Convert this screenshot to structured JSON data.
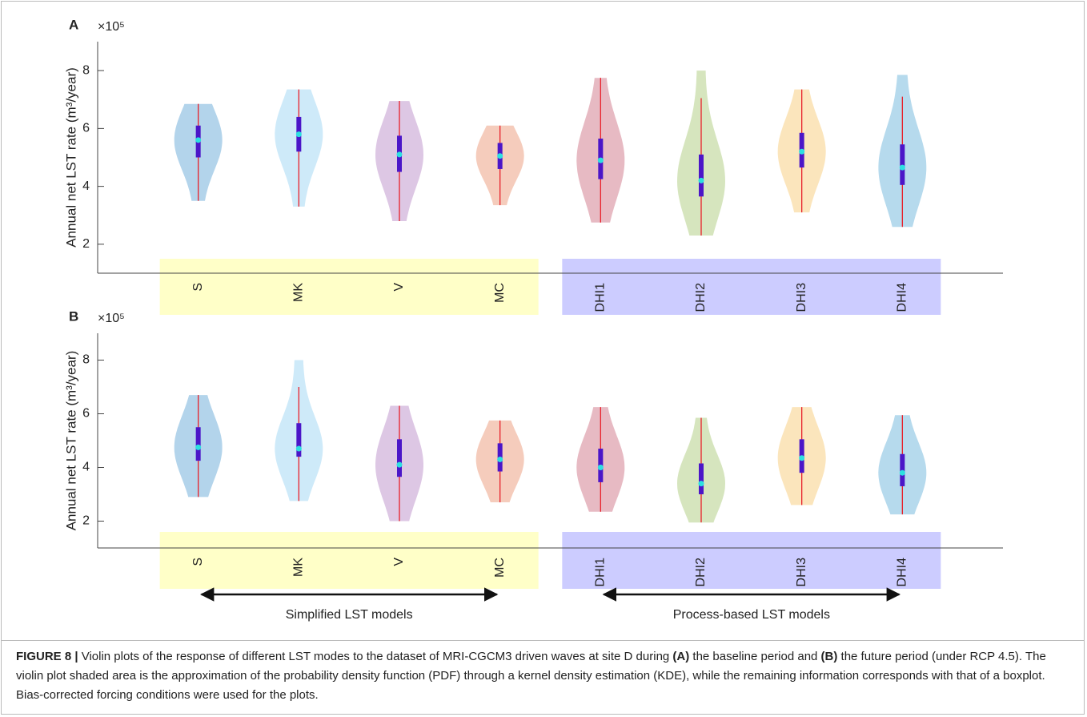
{
  "chart_data": [
    {
      "type": "violin",
      "panel": "A",
      "scale_label": "×10⁵",
      "y_label": "Annual net LST rate (m³/year)",
      "categories": [
        "S",
        "MK",
        "V",
        "MC",
        "DHI1",
        "DHI2",
        "DHI3",
        "DHI4"
      ],
      "colors": [
        "#a6cce8",
        "#c6e6f8",
        "#d7bddf",
        "#f3c3b0",
        "#e3aeb8",
        "#cfe0b3",
        "#fae0b0",
        "#a9d3ea"
      ],
      "min": [
        3.5,
        3.3,
        2.8,
        3.35,
        2.75,
        2.3,
        3.1,
        2.6
      ],
      "max": [
        6.85,
        7.35,
        6.95,
        6.1,
        7.75,
        8.0,
        7.35,
        7.85
      ],
      "whisker_low": [
        3.5,
        3.3,
        2.8,
        3.35,
        2.75,
        2.3,
        3.1,
        2.6
      ],
      "whisker_high": [
        6.85,
        7.35,
        6.95,
        6.1,
        7.75,
        7.05,
        7.35,
        7.1
      ],
      "q1": [
        5.0,
        5.2,
        4.5,
        4.6,
        4.25,
        3.65,
        4.65,
        4.05
      ],
      "median": [
        5.6,
        5.8,
        5.1,
        5.05,
        4.9,
        4.2,
        5.2,
        4.65
      ],
      "q3": [
        6.1,
        6.4,
        5.75,
        5.5,
        5.65,
        5.1,
        5.85,
        5.45
      ],
      "ylim": [
        1,
        9
      ],
      "yticks": [
        2,
        4,
        6,
        8
      ]
    },
    {
      "type": "violin",
      "panel": "B",
      "scale_label": "×10⁵",
      "y_label": "Annual net LST rate (m³/year)",
      "categories": [
        "S",
        "MK",
        "V",
        "MC",
        "DHI1",
        "DHI2",
        "DHI3",
        "DHI4"
      ],
      "colors": [
        "#a6cce8",
        "#c6e6f8",
        "#d7bddf",
        "#f3c3b0",
        "#e3aeb8",
        "#cfe0b3",
        "#fae0b0",
        "#a9d3ea"
      ],
      "min": [
        2.9,
        2.75,
        2.0,
        2.7,
        2.35,
        1.95,
        2.6,
        2.25
      ],
      "max": [
        6.7,
        8.0,
        6.3,
        5.75,
        6.25,
        5.85,
        6.25,
        5.95
      ],
      "whisker_low": [
        2.9,
        2.75,
        2.0,
        2.7,
        2.35,
        1.95,
        2.6,
        2.25
      ],
      "whisker_high": [
        6.7,
        7.0,
        6.3,
        5.75,
        6.25,
        5.85,
        6.25,
        5.95
      ],
      "q1": [
        4.25,
        4.4,
        3.65,
        3.85,
        3.45,
        3.0,
        3.8,
        3.3
      ],
      "median": [
        4.75,
        4.7,
        4.1,
        4.3,
        4.0,
        3.4,
        4.35,
        3.8
      ],
      "q3": [
        5.5,
        5.65,
        5.05,
        4.9,
        4.7,
        4.15,
        5.05,
        4.5
      ],
      "ylim": [
        1,
        9
      ],
      "yticks": [
        2,
        4,
        6,
        8
      ]
    }
  ],
  "groups": [
    {
      "label": "Simplified LST models",
      "color": "#ffffc8"
    },
    {
      "label": "Process-based LST models",
      "color": "#ccccff"
    }
  ],
  "caption": [
    {
      "text": "FIGURE 8 |",
      "bold": true
    },
    {
      "text": " Violin plots of the response of different LST modes to the dataset of MRI-CGCM3 driven waves at site D during "
    },
    {
      "text": "(A)",
      "bold": true
    },
    {
      "text": " the baseline period and "
    },
    {
      "text": "(B)",
      "bold": true
    },
    {
      "text": " the future period (under RCP 4.5). The violin plot shaded area is the approximation of the probability density function (PDF) through a kernel density estimation (KDE), while the remaining information corresponds with that of a boxplot. Bias-corrected forcing conditions were used for the plots."
    }
  ]
}
